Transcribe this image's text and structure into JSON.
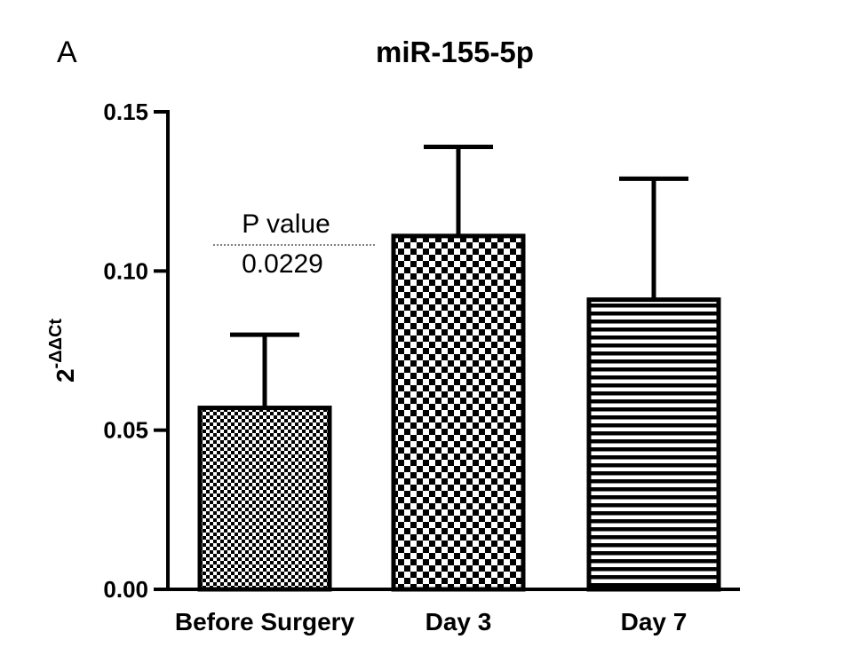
{
  "panel_label": "A",
  "chart_data": {
    "type": "bar",
    "title": "miR-155-5p",
    "ylabel": {
      "base": "2",
      "superscript": "-ΔΔCt"
    },
    "xlabel": "",
    "categories": [
      "Before Surgery",
      "Day 3",
      "Day 7"
    ],
    "values": [
      0.057,
      0.111,
      0.091
    ],
    "error_upper": [
      0.08,
      0.139,
      0.129
    ],
    "bar_patterns": [
      "fine-checker",
      "checker",
      "horizontal-stripes"
    ],
    "ylim": [
      0,
      0.15
    ],
    "yticks": [
      0.0,
      0.05,
      0.1,
      0.15
    ],
    "ytick_labels": [
      "0.00",
      "0.05",
      "0.10",
      "0.15"
    ],
    "grid": false,
    "legend": "none",
    "annotation": {
      "label": "P value",
      "value": "0.0229"
    }
  },
  "colors": {
    "ink": "#000000",
    "background": "#ffffff"
  }
}
